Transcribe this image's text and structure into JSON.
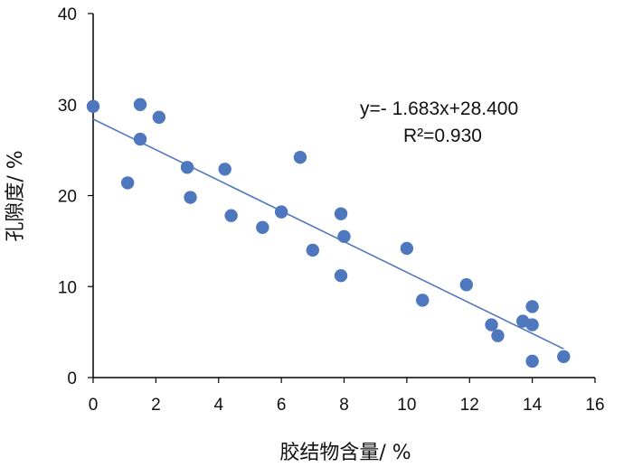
{
  "chart_data": {
    "type": "scatter",
    "xlabel": "胶结物含量/ %",
    "ylabel": "孔隙度/ %",
    "xlim": [
      0,
      16
    ],
    "ylim": [
      0,
      40
    ],
    "x_ticks": [
      "0",
      "2",
      "4",
      "6",
      "8",
      "10",
      "12",
      "14",
      "16"
    ],
    "y_ticks": [
      "0",
      "10",
      "20",
      "30",
      "40"
    ],
    "grid": false,
    "marker_color": "#4f77be",
    "trendline_color": "#4f77be",
    "trendline": {
      "slope": -1.683,
      "intercept": 28.4,
      "x_range": [
        0,
        15
      ]
    },
    "equation_text": "y=- 1.683x+28.400",
    "r2_text": "R²=0.930",
    "points": [
      {
        "x": 0.0,
        "y": 29.8
      },
      {
        "x": 1.1,
        "y": 21.4
      },
      {
        "x": 1.5,
        "y": 30.0
      },
      {
        "x": 1.5,
        "y": 26.2
      },
      {
        "x": 2.1,
        "y": 28.6
      },
      {
        "x": 3.0,
        "y": 23.1
      },
      {
        "x": 3.1,
        "y": 19.8
      },
      {
        "x": 4.2,
        "y": 22.9
      },
      {
        "x": 4.4,
        "y": 17.8
      },
      {
        "x": 5.4,
        "y": 16.5
      },
      {
        "x": 6.0,
        "y": 18.2
      },
      {
        "x": 6.6,
        "y": 24.2
      },
      {
        "x": 7.0,
        "y": 14.0
      },
      {
        "x": 7.9,
        "y": 18.0
      },
      {
        "x": 8.0,
        "y": 15.5
      },
      {
        "x": 7.9,
        "y": 11.2
      },
      {
        "x": 10.0,
        "y": 14.2
      },
      {
        "x": 10.5,
        "y": 8.5
      },
      {
        "x": 11.9,
        "y": 10.2
      },
      {
        "x": 12.7,
        "y": 5.8
      },
      {
        "x": 12.9,
        "y": 4.6
      },
      {
        "x": 13.7,
        "y": 6.2
      },
      {
        "x": 14.0,
        "y": 7.8
      },
      {
        "x": 14.0,
        "y": 5.8
      },
      {
        "x": 14.0,
        "y": 1.8
      },
      {
        "x": 15.0,
        "y": 2.3
      }
    ]
  }
}
